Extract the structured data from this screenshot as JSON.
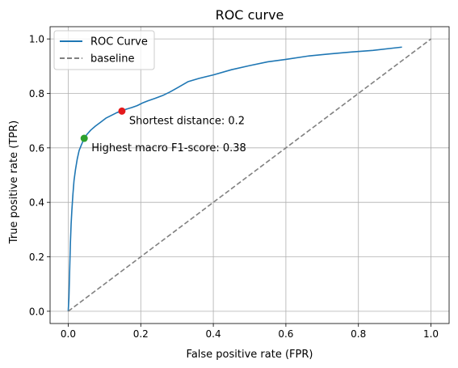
{
  "chart_data": {
    "type": "line",
    "title": "ROC curve",
    "xlabel": "False positive rate (FPR)",
    "ylabel": "True positive rate (TPR)",
    "xlim": [
      -0.05,
      1.05
    ],
    "ylim": [
      -0.045,
      1.045
    ],
    "xticks": [
      0.0,
      0.2,
      0.4,
      0.6,
      0.8,
      1.0
    ],
    "yticks": [
      0.0,
      0.2,
      0.4,
      0.6,
      0.8,
      1.0
    ],
    "xtick_labels": [
      "0.0",
      "0.2",
      "0.4",
      "0.6",
      "0.8",
      "1.0"
    ],
    "ytick_labels": [
      "0.0",
      "0.2",
      "0.4",
      "0.6",
      "0.8",
      "1.0"
    ],
    "grid": true,
    "legend_position": "top-left",
    "series": [
      {
        "name": "ROC Curve",
        "color": "#1f77b4",
        "style": "solid",
        "x": [
          0.0,
          0.002,
          0.004,
          0.006,
          0.008,
          0.01,
          0.013,
          0.016,
          0.02,
          0.025,
          0.03,
          0.036,
          0.044,
          0.052,
          0.062,
          0.075,
          0.09,
          0.105,
          0.12,
          0.135,
          0.148,
          0.16,
          0.175,
          0.19,
          0.205,
          0.22,
          0.24,
          0.26,
          0.28,
          0.3,
          0.33,
          0.36,
          0.4,
          0.45,
          0.5,
          0.55,
          0.6,
          0.66,
          0.72,
          0.78,
          0.84,
          0.9,
          0.92
        ],
        "y": [
          0.0,
          0.05,
          0.15,
          0.25,
          0.32,
          0.37,
          0.43,
          0.48,
          0.52,
          0.56,
          0.59,
          0.61,
          0.635,
          0.65,
          0.665,
          0.68,
          0.695,
          0.71,
          0.72,
          0.73,
          0.735,
          0.742,
          0.748,
          0.755,
          0.765,
          0.773,
          0.782,
          0.792,
          0.805,
          0.82,
          0.843,
          0.855,
          0.868,
          0.887,
          0.902,
          0.916,
          0.925,
          0.937,
          0.945,
          0.952,
          0.958,
          0.967,
          0.97
        ]
      },
      {
        "name": "baseline",
        "color": "#808080",
        "style": "dashed",
        "x": [
          0.0,
          1.0
        ],
        "y": [
          0.0,
          1.0
        ]
      }
    ],
    "points": [
      {
        "x": 0.148,
        "y": 0.735,
        "color": "#e41a1c",
        "label": "Shortest distance: 0.2"
      },
      {
        "x": 0.044,
        "y": 0.635,
        "color": "#2ca02c",
        "label": "Highest macro F1-score: 0.38"
      }
    ]
  }
}
